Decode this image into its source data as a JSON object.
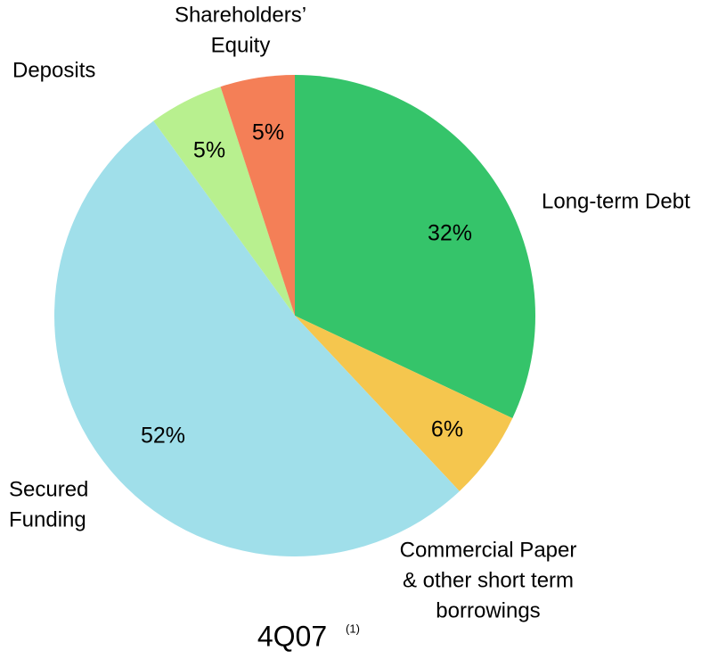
{
  "chart_data": {
    "type": "pie",
    "title": "4Q07",
    "title_note": "(1)",
    "categories": [
      [
        "Long-term Debt"
      ],
      [
        "Commercial Paper",
        "& other short term",
        "borrowings"
      ],
      [
        "Secured",
        "Funding"
      ],
      [
        "Deposits"
      ],
      [
        "Shareholders’",
        "Equity"
      ]
    ],
    "values": [
      32,
      6,
      52,
      5,
      5
    ],
    "value_labels": [
      "32%",
      "6%",
      "52%",
      "5%",
      "5%"
    ],
    "colors": [
      "#35c46a",
      "#f5c64e",
      "#a0dfea",
      "#b8f08f",
      "#f47f57"
    ],
    "start_angle": 0,
    "direction": "clockwise"
  }
}
